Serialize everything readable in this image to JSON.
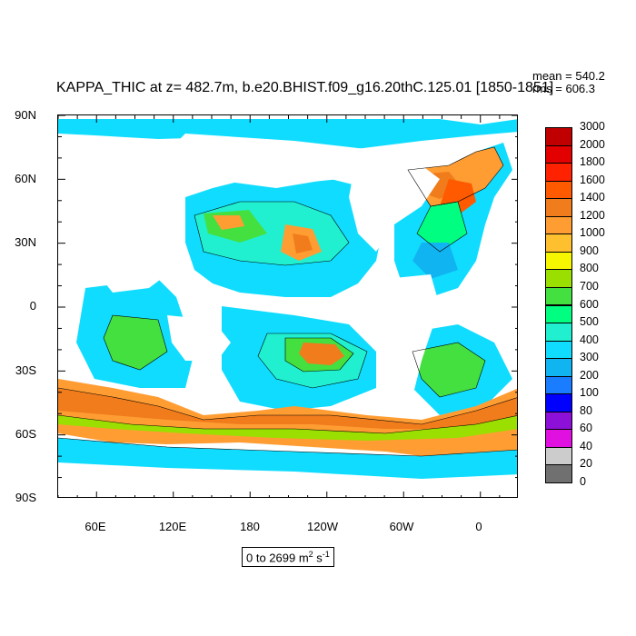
{
  "title": "KAPPA_THIC at z= 482.7m, b.e20.BHIST.f09_g16.20thC.125.01 [1850-1851]",
  "stats": {
    "mean": "mean = 540.2",
    "rms": "rms = 606.3"
  },
  "y_ticks": [
    "90N",
    "60N",
    "30N",
    "0",
    "30S",
    "60S",
    "90S"
  ],
  "x_ticks": [
    "60E",
    "120E",
    "180",
    "120W",
    "60W",
    "0"
  ],
  "colorbar": {
    "labels": [
      "3000",
      "2000",
      "1800",
      "1600",
      "1400",
      "1200",
      "1000",
      "900",
      "800",
      "700",
      "600",
      "500",
      "400",
      "300",
      "200",
      "100",
      "80",
      "60",
      "40",
      "20",
      "0"
    ],
    "colors": [
      "#c00000",
      "#e20000",
      "#ff2200",
      "#ff5a00",
      "#f07c1c",
      "#ff9d33",
      "#ffc030",
      "#f6f600",
      "#9bdf00",
      "#44e040",
      "#00ff80",
      "#20f0d0",
      "#10dcff",
      "#10b4f0",
      "#1a7cff",
      "#0000ff",
      "#8c10d8",
      "#e010e0",
      "#cccccc",
      "#707070"
    ]
  },
  "range_label": {
    "prefix": "0 to 2699 m",
    "sup1": "2",
    "mid": " s",
    "sup2": "-1"
  }
}
